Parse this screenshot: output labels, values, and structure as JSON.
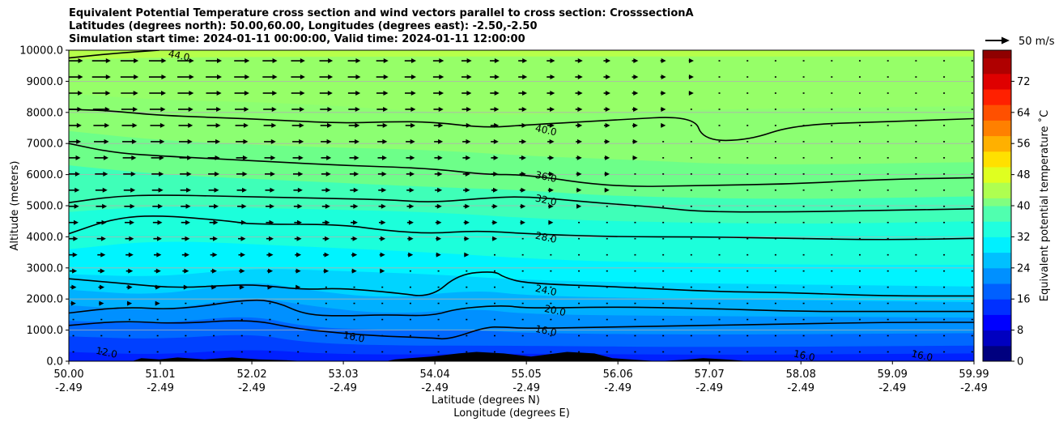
{
  "title": {
    "line1": "Equivalent Potential Temperature cross section and wind vectors parallel to cross section: CrosssectionA",
    "line2": "Latitudes (degrees north): 50.00,60.00, Longitudes (degrees east): -2.50,-2.50",
    "line3": "Simulation start time: 2024-01-11 00:00:00, Valid time: 2024-01-11 12:00:00"
  },
  "chart_data": {
    "type": "heatmap",
    "subtype": "filled contour cross section with contour lines and wind vectors",
    "ylabel": "Altitude (meters)",
    "xlabel_line1": "Latitude (degrees N)",
    "xlabel_line2": "Longitude (degrees E)",
    "ylim": [
      0,
      10000
    ],
    "yticks": [
      "0.0",
      "1000.0",
      "2000.0",
      "3000.0",
      "4000.0",
      "5000.0",
      "6000.0",
      "7000.0",
      "8000.0",
      "9000.0",
      "10000.0"
    ],
    "xlim": [
      50.0,
      59.99
    ],
    "xticks_lat": [
      "50.00",
      "51.01",
      "52.02",
      "53.03",
      "54.04",
      "55.05",
      "56.06",
      "57.07",
      "58.08",
      "59.09",
      "59.99"
    ],
    "xticks_lon": [
      "-2.49",
      "-2.49",
      "-2.49",
      "-2.49",
      "-2.49",
      "-2.49",
      "-2.49",
      "-2.49",
      "-2.49",
      "-2.49",
      "-2.49"
    ],
    "grid": "horizontal",
    "colorbar": {
      "label": "Equivalent potential temperature ˚C",
      "range": [
        0,
        80
      ],
      "ticks": [
        "0",
        "8",
        "16",
        "24",
        "32",
        "40",
        "48",
        "56",
        "64",
        "72"
      ],
      "colormap": "jet"
    },
    "quiver_key": {
      "label": "50 m/s"
    },
    "contour_levels": [
      "12.0",
      "16.0",
      "20.0",
      "24.0",
      "28.0",
      "32.0",
      "36.0",
      "40.0",
      "44.0"
    ],
    "contours": [
      {
        "level": 16,
        "points": [
          [
            50.0,
            1150
          ],
          [
            50.6,
            1300
          ],
          [
            51.2,
            1200
          ],
          [
            52.0,
            1350
          ],
          [
            52.5,
            1050
          ],
          [
            53.0,
            900
          ],
          [
            53.5,
            800
          ],
          [
            54.0,
            750
          ],
          [
            54.2,
            700
          ],
          [
            54.6,
            1100
          ],
          [
            54.8,
            1100
          ],
          [
            55.05,
            1050
          ],
          [
            56.0,
            1100
          ],
          [
            57.0,
            1150
          ],
          [
            58.0,
            1200
          ],
          [
            59.0,
            1250
          ],
          [
            59.99,
            1250
          ]
        ]
      },
      {
        "level": 20,
        "points": [
          [
            50.0,
            1550
          ],
          [
            50.6,
            1750
          ],
          [
            51.2,
            1650
          ],
          [
            52.0,
            2000
          ],
          [
            52.3,
            1900
          ],
          [
            52.6,
            1500
          ],
          [
            53.0,
            1450
          ],
          [
            53.5,
            1500
          ],
          [
            54.0,
            1450
          ],
          [
            54.3,
            1700
          ],
          [
            54.8,
            1800
          ],
          [
            55.05,
            1700
          ],
          [
            56.0,
            1750
          ],
          [
            57.0,
            1700
          ],
          [
            58.0,
            1600
          ],
          [
            59.0,
            1600
          ],
          [
            59.99,
            1600
          ]
        ]
      },
      {
        "level": 24,
        "points": [
          [
            50.0,
            2650
          ],
          [
            50.6,
            2500
          ],
          [
            51.2,
            2350
          ],
          [
            51.8,
            2450
          ],
          [
            52.1,
            2450
          ],
          [
            52.6,
            2300
          ],
          [
            53.0,
            2350
          ],
          [
            53.6,
            2200
          ],
          [
            54.0,
            2050
          ],
          [
            54.3,
            2800
          ],
          [
            54.7,
            2900
          ],
          [
            54.8,
            2700
          ],
          [
            55.05,
            2500
          ],
          [
            56.0,
            2400
          ],
          [
            57.0,
            2250
          ],
          [
            58.0,
            2200
          ],
          [
            59.0,
            2100
          ],
          [
            59.99,
            2100
          ]
        ]
      },
      {
        "level": 28,
        "points": [
          [
            50.0,
            4100
          ],
          [
            50.5,
            4600
          ],
          [
            51.0,
            4700
          ],
          [
            51.8,
            4500
          ],
          [
            52.0,
            4400
          ],
          [
            53.0,
            4400
          ],
          [
            53.5,
            4200
          ],
          [
            54.0,
            4100
          ],
          [
            54.5,
            4200
          ],
          [
            55.05,
            4100
          ],
          [
            56.0,
            4000
          ],
          [
            57.0,
            4000
          ],
          [
            58.0,
            3950
          ],
          [
            59.0,
            3900
          ],
          [
            59.99,
            3950
          ]
        ]
      },
      {
        "level": 32,
        "points": [
          [
            50.0,
            5100
          ],
          [
            50.5,
            5300
          ],
          [
            51.0,
            5350
          ],
          [
            51.8,
            5300
          ],
          [
            52.6,
            5250
          ],
          [
            53.5,
            5200
          ],
          [
            54.0,
            5100
          ],
          [
            54.6,
            5250
          ],
          [
            55.05,
            5300
          ],
          [
            55.8,
            5100
          ],
          [
            56.5,
            4950
          ],
          [
            57.0,
            4800
          ],
          [
            58.0,
            4800
          ],
          [
            59.0,
            4850
          ],
          [
            59.99,
            4900
          ]
        ]
      },
      {
        "level": 36,
        "points": [
          [
            50.0,
            7000
          ],
          [
            50.5,
            6700
          ],
          [
            51.0,
            6600
          ],
          [
            52.0,
            6450
          ],
          [
            53.0,
            6300
          ],
          [
            54.0,
            6200
          ],
          [
            54.6,
            6000
          ],
          [
            55.05,
            6000
          ],
          [
            56.0,
            5600
          ],
          [
            57.0,
            5650
          ],
          [
            58.0,
            5700
          ],
          [
            59.0,
            5850
          ],
          [
            59.99,
            5900
          ]
        ]
      },
      {
        "level": 40,
        "points": [
          [
            50.0,
            8100
          ],
          [
            50.5,
            8050
          ],
          [
            51.0,
            7900
          ],
          [
            52.0,
            7800
          ],
          [
            53.0,
            7650
          ],
          [
            53.5,
            7700
          ],
          [
            54.0,
            7700
          ],
          [
            54.6,
            7500
          ],
          [
            55.05,
            7600
          ],
          [
            56.0,
            7750
          ],
          [
            56.9,
            7900
          ],
          [
            57.0,
            7100
          ],
          [
            57.5,
            7100
          ],
          [
            58.0,
            7600
          ],
          [
            59.0,
            7700
          ],
          [
            59.99,
            7800
          ]
        ]
      },
      {
        "level": 44,
        "points": [
          [
            50.0,
            9750
          ],
          [
            50.5,
            9900
          ],
          [
            51.0,
            10000
          ]
        ]
      }
    ],
    "contour_labels": [
      {
        "text": "40.0",
        "x": 55.15,
        "y": 7500
      },
      {
        "text": "36.0",
        "x": 55.15,
        "y": 6000
      },
      {
        "text": "32.0",
        "x": 55.15,
        "y": 5250
      },
      {
        "text": "28.0",
        "x": 55.15,
        "y": 4050
      },
      {
        "text": "24.0",
        "x": 55.15,
        "y": 2350
      },
      {
        "text": "20.0",
        "x": 55.25,
        "y": 1700
      },
      {
        "text": "16.0",
        "x": 55.15,
        "y": 1050
      },
      {
        "text": "16.0",
        "x": 53.03,
        "y": 850
      },
      {
        "text": "12.0",
        "x": 50.3,
        "y": 350
      },
      {
        "text": "16.0",
        "x": 58.0,
        "y": 250
      },
      {
        "text": "16.0",
        "x": 59.3,
        "y": 250
      },
      {
        "text": "44.0",
        "x": 51.1,
        "y": 9900
      }
    ],
    "fill_bands": [
      {
        "top": [
          [
            50.0,
            10000
          ],
          [
            59.99,
            10000
          ]
        ],
        "color": "#b6ff4a"
      },
      {
        "top": [
          [
            50.0,
            9700
          ],
          [
            51.5,
            9800
          ],
          [
            59.99,
            9800
          ]
        ],
        "color": "#96ff68"
      },
      {
        "top": [
          [
            50.0,
            8600
          ],
          [
            51.0,
            8400
          ],
          [
            52.5,
            8300
          ],
          [
            54.0,
            8000
          ],
          [
            55.05,
            7900
          ],
          [
            57.0,
            8100
          ],
          [
            59.99,
            8200
          ]
        ],
        "color": "#8cff72"
      },
      {
        "top": [
          [
            50.0,
            7400
          ],
          [
            51.0,
            7100
          ],
          [
            52.5,
            6900
          ],
          [
            54.0,
            6800
          ],
          [
            55.05,
            6600
          ],
          [
            56.0,
            6500
          ],
          [
            57.5,
            6300
          ],
          [
            59.99,
            6400
          ]
        ],
        "color": "#6dff89"
      },
      {
        "top": [
          [
            50.0,
            6300
          ],
          [
            51.0,
            6000
          ],
          [
            52.5,
            5800
          ],
          [
            54.0,
            5600
          ],
          [
            55.05,
            5500
          ],
          [
            56.0,
            5300
          ],
          [
            58.0,
            5200
          ],
          [
            59.99,
            5300
          ]
        ],
        "color": "#3fffb8"
      },
      {
        "top": [
          [
            50.0,
            4800
          ],
          [
            51.0,
            5000
          ],
          [
            52.5,
            4900
          ],
          [
            54.0,
            4800
          ],
          [
            55.05,
            4600
          ],
          [
            56.0,
            4500
          ],
          [
            58.0,
            4400
          ],
          [
            59.99,
            4500
          ]
        ],
        "color": "#1cffdb"
      },
      {
        "top": [
          [
            50.0,
            3600
          ],
          [
            51.0,
            3900
          ],
          [
            52.5,
            3700
          ],
          [
            54.0,
            3500
          ],
          [
            55.05,
            3300
          ],
          [
            56.0,
            3200
          ],
          [
            58.0,
            3100
          ],
          [
            59.99,
            3100
          ]
        ],
        "color": "#00f4ff"
      },
      {
        "top": [
          [
            50.0,
            2800
          ],
          [
            51.0,
            2700
          ],
          [
            52.0,
            3000
          ],
          [
            53.0,
            2900
          ],
          [
            54.0,
            2800
          ],
          [
            55.05,
            2600
          ],
          [
            57.0,
            2500
          ],
          [
            59.99,
            2400
          ]
        ],
        "color": "#00d4ff"
      },
      {
        "top": [
          [
            50.0,
            2300
          ],
          [
            51.0,
            2100
          ],
          [
            52.0,
            2600
          ],
          [
            52.6,
            2300
          ],
          [
            53.5,
            2000
          ],
          [
            54.5,
            2300
          ],
          [
            55.05,
            2100
          ],
          [
            57.0,
            2000
          ],
          [
            59.99,
            1900
          ]
        ],
        "color": "#00b0ff"
      },
      {
        "top": [
          [
            50.0,
            1800
          ],
          [
            51.0,
            1600
          ],
          [
            52.0,
            2100
          ],
          [
            52.6,
            1800
          ],
          [
            53.5,
            1500
          ],
          [
            54.5,
            1700
          ],
          [
            55.05,
            1500
          ],
          [
            57.0,
            1450
          ],
          [
            59.99,
            1400
          ]
        ],
        "color": "#0090ff"
      },
      {
        "top": [
          [
            50.0,
            1300
          ],
          [
            51.0,
            1200
          ],
          [
            52.0,
            1500
          ],
          [
            52.6,
            1100
          ],
          [
            53.5,
            1000
          ],
          [
            54.5,
            1000
          ],
          [
            55.05,
            900
          ],
          [
            57.0,
            850
          ],
          [
            59.99,
            900
          ]
        ],
        "color": "#0068ff"
      },
      {
        "top": [
          [
            50.0,
            800
          ],
          [
            51.0,
            700
          ],
          [
            52.0,
            900
          ],
          [
            52.6,
            600
          ],
          [
            53.5,
            500
          ],
          [
            55.05,
            500
          ],
          [
            57.0,
            450
          ],
          [
            59.99,
            500
          ]
        ],
        "color": "#0040ff"
      },
      {
        "top": [
          [
            50.0,
            300
          ],
          [
            51.0,
            200
          ],
          [
            52.0,
            400
          ],
          [
            53.0,
            200
          ],
          [
            55.05,
            250
          ],
          [
            57.0,
            200
          ],
          [
            59.99,
            250
          ]
        ],
        "color": "#0020ff"
      }
    ],
    "terrain": [
      [
        50.0,
        0
      ],
      [
        50.7,
        0
      ],
      [
        50.8,
        100
      ],
      [
        51.0,
        60
      ],
      [
        51.2,
        120
      ],
      [
        51.5,
        60
      ],
      [
        51.8,
        120
      ],
      [
        52.1,
        60
      ],
      [
        52.4,
        30
      ],
      [
        52.6,
        0
      ],
      [
        53.5,
        0
      ],
      [
        53.6,
        60
      ],
      [
        54.0,
        150
      ],
      [
        54.3,
        250
      ],
      [
        54.5,
        300
      ],
      [
        54.8,
        250
      ],
      [
        55.1,
        150
      ],
      [
        55.5,
        300
      ],
      [
        55.8,
        250
      ],
      [
        56.0,
        100
      ],
      [
        56.5,
        0
      ],
      [
        56.8,
        50
      ],
      [
        57.0,
        100
      ],
      [
        57.3,
        50
      ],
      [
        57.5,
        0
      ],
      [
        59.99,
        0
      ]
    ],
    "wind_note": "vectors point toward north (+x), longer aloft in the west, shrinking eastward"
  }
}
